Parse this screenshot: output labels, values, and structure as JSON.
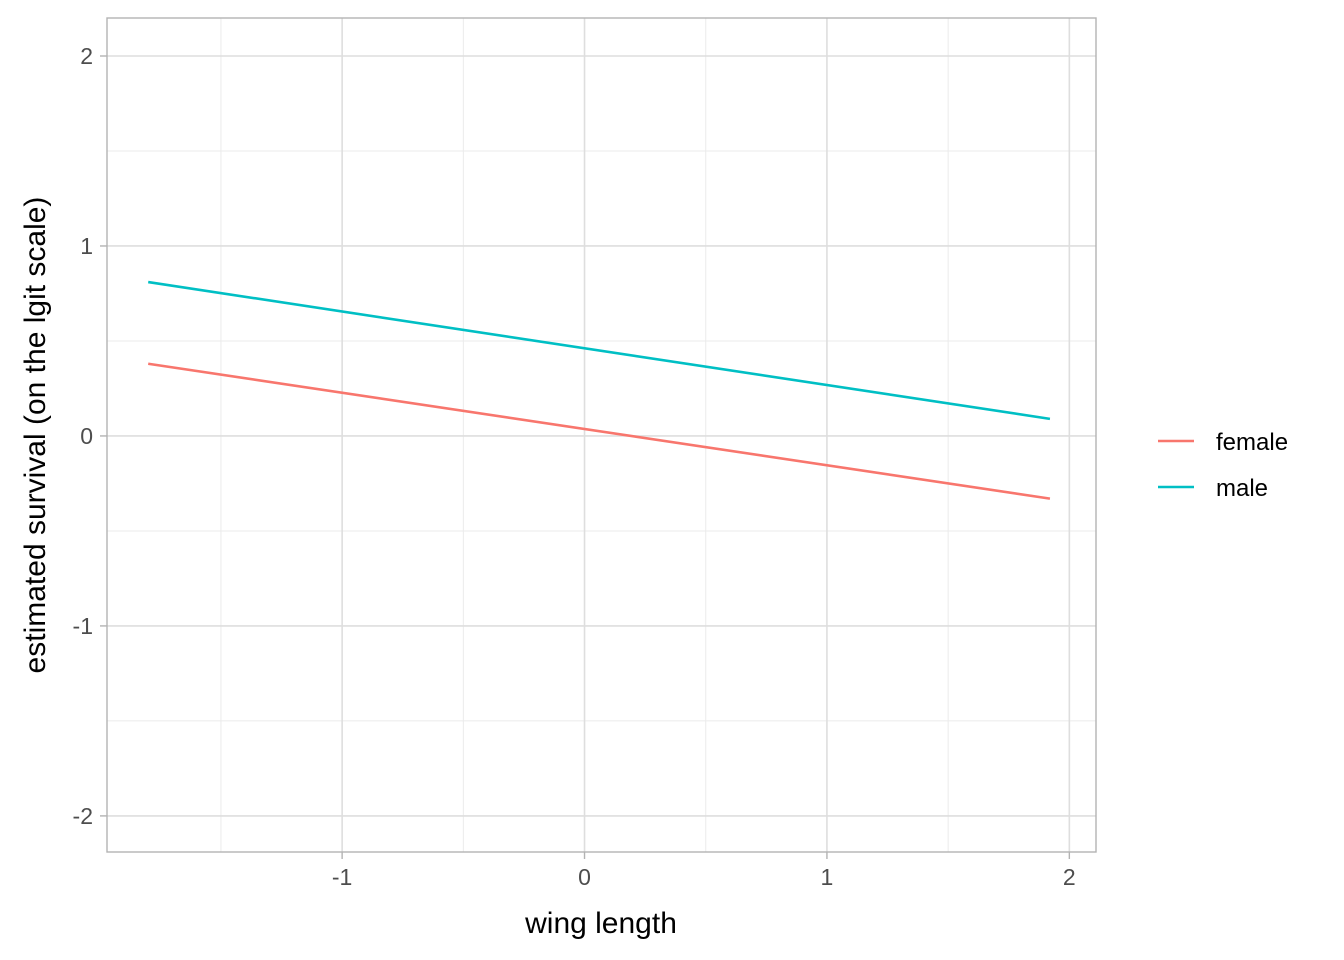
{
  "chart_data": {
    "type": "line",
    "title": "",
    "xlabel": "wing length",
    "ylabel": "estimated survival (on the lgit scale)",
    "xlim": [
      -1.97,
      2.11
    ],
    "ylim": [
      -2.19,
      2.2
    ],
    "x_ticks": [
      -1,
      0,
      1,
      2
    ],
    "x_tick_labels": [
      "-1",
      "0",
      "1",
      "2"
    ],
    "x_minor_ticks": [
      -1.5,
      -0.5,
      0.5,
      1.5
    ],
    "y_ticks": [
      -2,
      -1,
      0,
      1,
      2
    ],
    "y_tick_labels": [
      "-2",
      "-1",
      "0",
      "1",
      "2"
    ],
    "y_minor_ticks": [
      -1.5,
      -0.5,
      0.5,
      1.5
    ],
    "grid": true,
    "legend_position": "right",
    "series": [
      {
        "name": "female",
        "color": "#F8766D",
        "x": [
          -1.8,
          1.92
        ],
        "y": [
          0.38,
          -0.33
        ]
      },
      {
        "name": "male",
        "color": "#00BFC4",
        "x": [
          -1.8,
          1.92
        ],
        "y": [
          0.81,
          0.09
        ]
      }
    ]
  }
}
